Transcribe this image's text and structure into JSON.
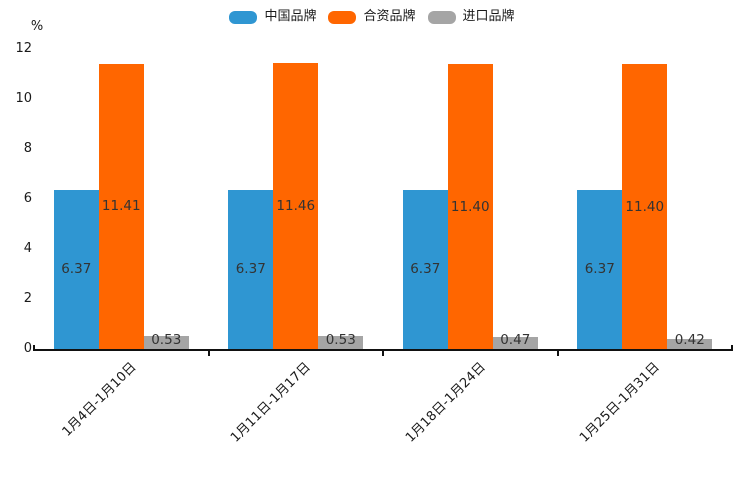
{
  "chart_data": {
    "type": "bar",
    "unit_label": "%",
    "categories": [
      "1月4日-1月10日",
      "1月11日-1月17日",
      "1月18日-1月24日",
      "1月25日-1月31日"
    ],
    "series": [
      {
        "name": "中国品牌",
        "color": "#2F96D2",
        "values": [
          6.37,
          6.37,
          6.37,
          6.37
        ],
        "value_labels": [
          "6.37",
          "6.37",
          "6.37",
          "6.37"
        ]
      },
      {
        "name": "合资品牌",
        "color": "#FF6600",
        "values": [
          11.41,
          11.46,
          11.4,
          11.4
        ],
        "value_labels": [
          "11.41",
          "11.46",
          "11.40",
          "11.40"
        ]
      },
      {
        "name": "进口品牌",
        "color": "#A5A5A5",
        "values": [
          0.53,
          0.53,
          0.47,
          0.42
        ],
        "value_labels": [
          "0.53",
          "0.53",
          "0.47",
          "0.42"
        ]
      }
    ],
    "yticks": [
      0,
      2,
      4,
      6,
      8,
      10,
      12
    ],
    "ylim": [
      0,
      12
    ],
    "grid": false,
    "legend_position": "top-center",
    "x_label_rotation_deg": 45,
    "value_labels_shown": true,
    "colors": {
      "text": "#1a1a1a",
      "value_label": "#333333",
      "axis": "#111111",
      "background": "#ffffff"
    }
  }
}
